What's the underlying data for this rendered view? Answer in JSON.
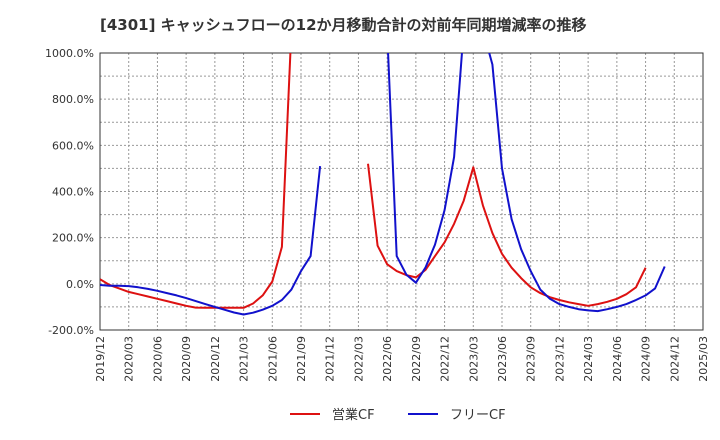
{
  "chart_data": {
    "type": "line",
    "title": "[4301]  キャッシュフローの12か月移動合計の対前年同期増減率の推移",
    "xlabel": "",
    "ylabel": "",
    "ylim": [
      -200,
      1000
    ],
    "y_ticks": [
      {
        "value": 1000,
        "label": "1000.0%"
      },
      {
        "value": 800,
        "label": "800.0%"
      },
      {
        "value": 600,
        "label": "600.0%"
      },
      {
        "value": 400,
        "label": "400.0%"
      },
      {
        "value": 200,
        "label": "200.0%"
      },
      {
        "value": 0,
        "label": "0.0%"
      },
      {
        "value": -200,
        "label": "-200.0%"
      }
    ],
    "x_range": [
      "2019/12",
      "2025/03"
    ],
    "x_ticks": [
      "2019/12",
      "2020/03",
      "2020/06",
      "2020/09",
      "2020/12",
      "2021/03",
      "2021/06",
      "2021/09",
      "2021/12",
      "2022/03",
      "2022/06",
      "2022/09",
      "2022/12",
      "2023/03",
      "2023/06",
      "2023/09",
      "2023/12",
      "2024/03",
      "2024/06",
      "2024/09",
      "2024/12",
      "2025/03"
    ],
    "grid": true,
    "legend_position": "bottom",
    "series": [
      {
        "name": "営業CF",
        "color": "#dd1111",
        "points": [
          [
            "2019/12",
            20
          ],
          [
            "2020/01",
            -5
          ],
          [
            "2020/02",
            -20
          ],
          [
            "2020/03",
            -35
          ],
          [
            "2020/04",
            -45
          ],
          [
            "2020/05",
            -55
          ],
          [
            "2020/06",
            -65
          ],
          [
            "2020/07",
            -75
          ],
          [
            "2020/08",
            -85
          ],
          [
            "2020/09",
            -95
          ],
          [
            "2020/10",
            -103
          ],
          [
            "2020/11",
            -104
          ],
          [
            "2020/12",
            -104
          ],
          [
            "2021/01",
            -104
          ],
          [
            "2021/02",
            -104
          ],
          [
            "2021/03",
            -104
          ],
          [
            "2021/04",
            -85
          ],
          [
            "2021/05",
            -50
          ],
          [
            "2021/06",
            10
          ],
          [
            "2021/07",
            160
          ],
          [
            "2021/08",
            1100
          ],
          null,
          [
            "2022/04",
            520
          ],
          [
            "2022/05",
            165
          ],
          [
            "2022/06",
            85
          ],
          [
            "2022/07",
            55
          ],
          [
            "2022/08",
            38
          ],
          [
            "2022/09",
            28
          ],
          [
            "2022/10",
            60
          ],
          [
            "2022/11",
            120
          ],
          [
            "2022/12",
            180
          ],
          [
            "2023/01",
            260
          ],
          [
            "2023/02",
            360
          ],
          [
            "2023/03",
            505
          ],
          [
            "2023/04",
            340
          ],
          [
            "2023/05",
            220
          ],
          [
            "2023/06",
            130
          ],
          [
            "2023/07",
            70
          ],
          [
            "2023/08",
            25
          ],
          [
            "2023/09",
            -15
          ],
          [
            "2023/10",
            -40
          ],
          [
            "2023/11",
            -58
          ],
          [
            "2023/12",
            -70
          ],
          [
            "2024/01",
            -80
          ],
          [
            "2024/02",
            -88
          ],
          [
            "2024/03",
            -95
          ],
          [
            "2024/04",
            -88
          ],
          [
            "2024/05",
            -78
          ],
          [
            "2024/06",
            -65
          ],
          [
            "2024/07",
            -45
          ],
          [
            "2024/08",
            -15
          ],
          [
            "2024/09",
            70
          ]
        ]
      },
      {
        "name": "フリーCF",
        "color": "#1111cc",
        "points": [
          [
            "2019/12",
            -5
          ],
          [
            "2020/01",
            -8
          ],
          [
            "2020/02",
            -8
          ],
          [
            "2020/03",
            -10
          ],
          [
            "2020/04",
            -15
          ],
          [
            "2020/05",
            -22
          ],
          [
            "2020/06",
            -30
          ],
          [
            "2020/07",
            -40
          ],
          [
            "2020/08",
            -50
          ],
          [
            "2020/09",
            -62
          ],
          [
            "2020/10",
            -75
          ],
          [
            "2020/11",
            -88
          ],
          [
            "2020/12",
            -100
          ],
          [
            "2021/01",
            -112
          ],
          [
            "2021/02",
            -124
          ],
          [
            "2021/03",
            -133
          ],
          [
            "2021/04",
            -125
          ],
          [
            "2021/05",
            -112
          ],
          [
            "2021/06",
            -95
          ],
          [
            "2021/07",
            -70
          ],
          [
            "2021/08",
            -25
          ],
          [
            "2021/09",
            55
          ],
          [
            "2021/10",
            120
          ],
          [
            "2021/11",
            510
          ],
          null,
          [
            "2022/06",
            1100
          ],
          [
            "2022/07",
            120
          ],
          [
            "2022/08",
            40
          ],
          [
            "2022/09",
            5
          ],
          [
            "2022/10",
            70
          ],
          [
            "2022/11",
            170
          ],
          [
            "2022/12",
            320
          ],
          [
            "2023/01",
            550
          ],
          [
            "2023/02",
            1100
          ],
          null,
          [
            "2023/04",
            1100
          ],
          [
            "2023/05",
            950
          ],
          [
            "2023/06",
            500
          ],
          [
            "2023/07",
            280
          ],
          [
            "2023/08",
            150
          ],
          [
            "2023/09",
            55
          ],
          [
            "2023/10",
            -25
          ],
          [
            "2023/11",
            -65
          ],
          [
            "2023/12",
            -88
          ],
          [
            "2024/01",
            -100
          ],
          [
            "2024/02",
            -110
          ],
          [
            "2024/03",
            -115
          ],
          [
            "2024/04",
            -118
          ],
          [
            "2024/05",
            -110
          ],
          [
            "2024/06",
            -100
          ],
          [
            "2024/07",
            -88
          ],
          [
            "2024/08",
            -70
          ],
          [
            "2024/09",
            -50
          ],
          [
            "2024/10",
            -20
          ],
          [
            "2024/11",
            75
          ]
        ]
      }
    ]
  }
}
